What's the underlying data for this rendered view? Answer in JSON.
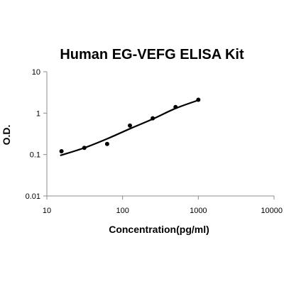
{
  "chart_data": {
    "type": "scatter",
    "title": "Human EG-VEFG ELISA Kit",
    "xlabel": "Concentration(pg/ml)",
    "ylabel": "O.D.",
    "x_scale": "log",
    "y_scale": "log",
    "xlim": [
      10,
      10000
    ],
    "ylim": [
      0.01,
      10
    ],
    "x_ticks": [
      "10",
      "100",
      "1000",
      "10000"
    ],
    "y_ticks": [
      "0.01",
      "0.1",
      "1",
      "10"
    ],
    "grid": false,
    "legend": "none",
    "series": [
      {
        "x": [
          15.6,
          31.25,
          62.5,
          125,
          250,
          500,
          1000
        ],
        "y": [
          0.12,
          0.145,
          0.18,
          0.5,
          0.75,
          1.4,
          2.1
        ]
      }
    ],
    "fit_curve": {
      "x": [
        15,
        31.25,
        62.5,
        125,
        250,
        500,
        1000
      ],
      "y": [
        0.095,
        0.145,
        0.24,
        0.42,
        0.72,
        1.3,
        2.05
      ]
    }
  }
}
